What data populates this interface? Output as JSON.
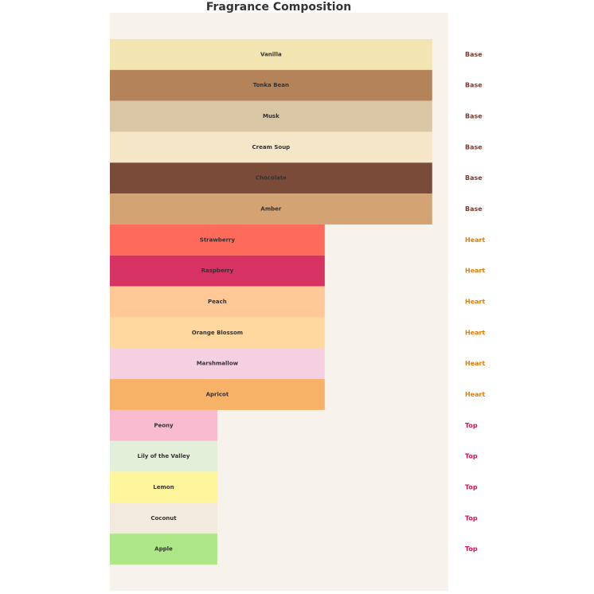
{
  "chart_data": {
    "type": "barh",
    "title": "Fragrance Composition",
    "categories": [
      "Vanilla",
      "Tonka Bean",
      "Musk",
      "Cream Soup",
      "Chocolate",
      "Amber",
      "Strawberry",
      "Raspberry",
      "Peach",
      "Orange Blossom",
      "Marshmallow",
      "Apricot",
      "Peony",
      "Lily of the Valley",
      "Lemon",
      "Coconut",
      "Apple"
    ],
    "values": [
      3,
      3,
      3,
      3,
      3,
      3,
      2,
      2,
      2,
      2,
      2,
      2,
      1,
      1,
      1,
      1,
      1
    ],
    "colors": [
      "#f3e5b1",
      "#b5835a",
      "#d8c6a5",
      "#f5e6c8",
      "#7b4b3a",
      "#d4a373",
      "#ff6b5b",
      "#d63264",
      "#ffc896",
      "#ffd8a0",
      "#f5d0e0",
      "#f8b268",
      "#f8bbd0",
      "#e3efd9",
      "#fff59d",
      "#f2eadc",
      "#aee787"
    ],
    "tiers": [
      "Base",
      "Base",
      "Base",
      "Base",
      "Base",
      "Base",
      "Heart",
      "Heart",
      "Heart",
      "Heart",
      "Heart",
      "Heart",
      "Top",
      "Top",
      "Top",
      "Top",
      "Top"
    ],
    "tier_colors": [
      "#7a3b2e",
      "#7a3b2e",
      "#7a3b2e",
      "#7a3b2e",
      "#7a3b2e",
      "#7a3b2e",
      "#e67e00",
      "#e67e00",
      "#e67e00",
      "#e67e00",
      "#e67e00",
      "#e67e00",
      "#d6105a",
      "#d6105a",
      "#d6105a",
      "#d6105a",
      "#d6105a"
    ],
    "xlim": [
      0,
      3.15
    ]
  }
}
